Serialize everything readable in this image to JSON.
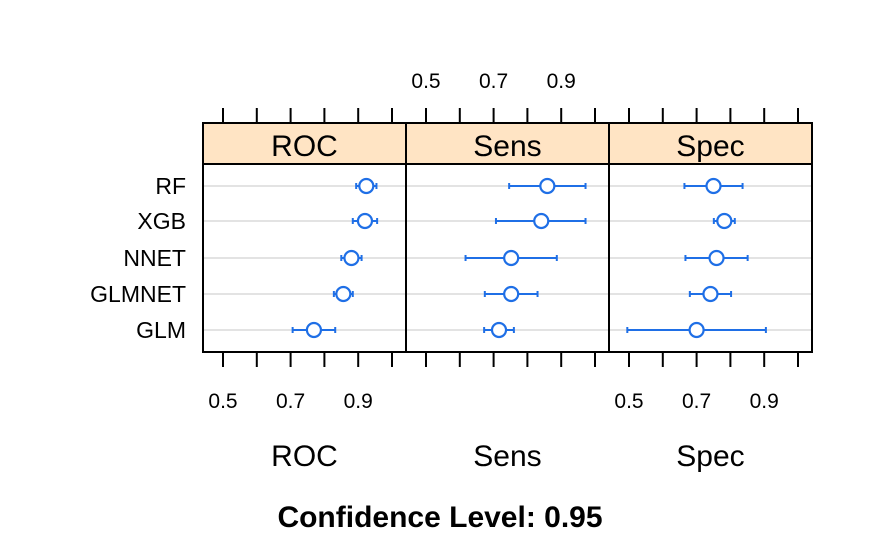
{
  "chart_data": {
    "type": "dotplot",
    "caption": "Confidence Level: 0.95",
    "models": [
      "RF",
      "XGB",
      "NNET",
      "GLMNET",
      "GLM"
    ],
    "xlim": [
      0.4,
      1.0
    ],
    "ticks": [
      0.5,
      0.6,
      0.7,
      0.8,
      0.9,
      1.0
    ],
    "tick_labels": [
      "0.5",
      "0.7",
      "0.9"
    ],
    "point_color": "#1f6fe6",
    "strip_color": "#ffe4c4",
    "panels": [
      {
        "name": "ROC",
        "xlabel": "ROC",
        "points": [
          {
            "model": "RF",
            "estimate": 0.924,
            "lower": 0.894,
            "upper": 0.954
          },
          {
            "model": "XGB",
            "estimate": 0.92,
            "lower": 0.884,
            "upper": 0.956
          },
          {
            "model": "NNET",
            "estimate": 0.88,
            "lower": 0.85,
            "upper": 0.91
          },
          {
            "model": "GLMNET",
            "estimate": 0.856,
            "lower": 0.828,
            "upper": 0.884
          },
          {
            "model": "GLM",
            "estimate": 0.769,
            "lower": 0.706,
            "upper": 0.832
          }
        ]
      },
      {
        "name": "Sens",
        "xlabel": "Sens",
        "points": [
          {
            "model": "RF",
            "estimate": 0.859,
            "lower": 0.746,
            "upper": 0.972
          },
          {
            "model": "XGB",
            "estimate": 0.841,
            "lower": 0.707,
            "upper": 0.972
          },
          {
            "model": "NNET",
            "estimate": 0.752,
            "lower": 0.617,
            "upper": 0.887
          },
          {
            "model": "GLMNET",
            "estimate": 0.752,
            "lower": 0.674,
            "upper": 0.83
          },
          {
            "model": "GLM",
            "estimate": 0.716,
            "lower": 0.672,
            "upper": 0.76
          }
        ]
      },
      {
        "name": "Spec",
        "xlabel": "Spec",
        "points": [
          {
            "model": "RF",
            "estimate": 0.75,
            "lower": 0.664,
            "upper": 0.836
          },
          {
            "model": "XGB",
            "estimate": 0.782,
            "lower": 0.751,
            "upper": 0.813
          },
          {
            "model": "NNET",
            "estimate": 0.759,
            "lower": 0.667,
            "upper": 0.851
          },
          {
            "model": "GLMNET",
            "estimate": 0.741,
            "lower": 0.68,
            "upper": 0.802
          },
          {
            "model": "GLM",
            "estimate": 0.7,
            "lower": 0.495,
            "upper": 0.905
          }
        ]
      }
    ]
  }
}
